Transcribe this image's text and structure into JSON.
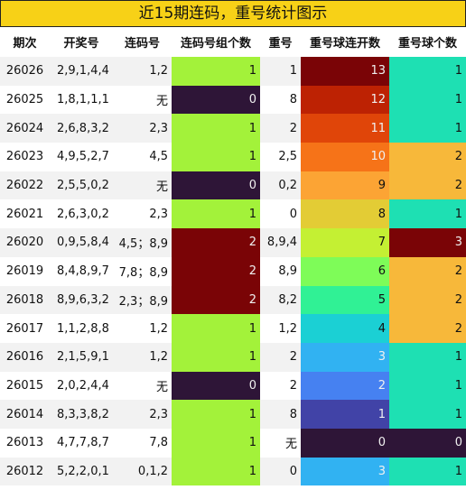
{
  "title": "近15期连码，重号统计图示",
  "headers": [
    "期次",
    "开奖号",
    "连码号",
    "连码号组个数",
    "重号",
    "重号球连开数",
    "重号球个数"
  ],
  "colors": {
    "title_bg": "#f7d117",
    "group_count": {
      "0": "#2e1537",
      "1": "#a3f23a",
      "2": "#7a0406"
    },
    "repeat_count": {
      "0": "#2e1537",
      "1": "#1ee0b3",
      "2": "#f7b83a",
      "3": "#7a0406"
    },
    "streak": {
      "0": "#2e1537",
      "1": "#4143a7",
      "2": "#4681f1",
      "3": "#31b2f2",
      "4": "#1bd0d4",
      "5": "#30f195",
      "6": "#7efc58",
      "7": "#c4f033",
      "8": "#e3cc35",
      "9": "#fca434",
      "10": "#f67318",
      "11": "#e04509",
      "12": "#bd2203",
      "13": "#7a0406"
    }
  },
  "rows": [
    {
      "period": "26026",
      "draw": "2,9,1,4,4",
      "consec": "1,2",
      "group_count": "1",
      "repeat": "1",
      "streak": "13",
      "repeat_count": "1"
    },
    {
      "period": "26025",
      "draw": "1,8,1,1,1",
      "consec": "无",
      "group_count": "0",
      "repeat": "8",
      "streak": "12",
      "repeat_count": "1"
    },
    {
      "period": "26024",
      "draw": "2,6,8,3,2",
      "consec": "2,3",
      "group_count": "1",
      "repeat": "2",
      "streak": "11",
      "repeat_count": "1"
    },
    {
      "period": "26023",
      "draw": "4,9,5,2,7",
      "consec": "4,5",
      "group_count": "1",
      "repeat": "2,5",
      "streak": "10",
      "repeat_count": "2"
    },
    {
      "period": "26022",
      "draw": "2,5,5,0,2",
      "consec": "无",
      "group_count": "0",
      "repeat": "0,2",
      "streak": "9",
      "repeat_count": "2"
    },
    {
      "period": "26021",
      "draw": "2,6,3,0,2",
      "consec": "2,3",
      "group_count": "1",
      "repeat": "0",
      "streak": "8",
      "repeat_count": "1"
    },
    {
      "period": "26020",
      "draw": "0,9,5,8,4",
      "consec": "4,5；8,9",
      "group_count": "2",
      "repeat": "8,9,4",
      "streak": "7",
      "repeat_count": "3"
    },
    {
      "period": "26019",
      "draw": "8,4,8,9,7",
      "consec": "7,8；8,9",
      "group_count": "2",
      "repeat": "8,9",
      "streak": "6",
      "repeat_count": "2"
    },
    {
      "period": "26018",
      "draw": "8,9,6,3,2",
      "consec": "2,3；8,9",
      "group_count": "2",
      "repeat": "8,2",
      "streak": "5",
      "repeat_count": "2"
    },
    {
      "period": "26017",
      "draw": "1,1,2,8,8",
      "consec": "1,2",
      "group_count": "1",
      "repeat": "1,2",
      "streak": "4",
      "repeat_count": "2"
    },
    {
      "period": "26016",
      "draw": "2,1,5,9,1",
      "consec": "1,2",
      "group_count": "1",
      "repeat": "2",
      "streak": "3",
      "repeat_count": "1"
    },
    {
      "period": "26015",
      "draw": "2,0,2,4,4",
      "consec": "无",
      "group_count": "0",
      "repeat": "2",
      "streak": "2",
      "repeat_count": "1"
    },
    {
      "period": "26014",
      "draw": "8,3,3,8,2",
      "consec": "2,3",
      "group_count": "1",
      "repeat": "8",
      "streak": "1",
      "repeat_count": "1"
    },
    {
      "period": "26013",
      "draw": "4,7,7,8,7",
      "consec": "7,8",
      "group_count": "1",
      "repeat": "无",
      "streak": "0",
      "repeat_count": "0"
    },
    {
      "period": "26012",
      "draw": "5,2,2,0,1",
      "consec": "0,1,2",
      "group_count": "1",
      "repeat": "0",
      "streak": "3",
      "repeat_count": "1"
    }
  ]
}
